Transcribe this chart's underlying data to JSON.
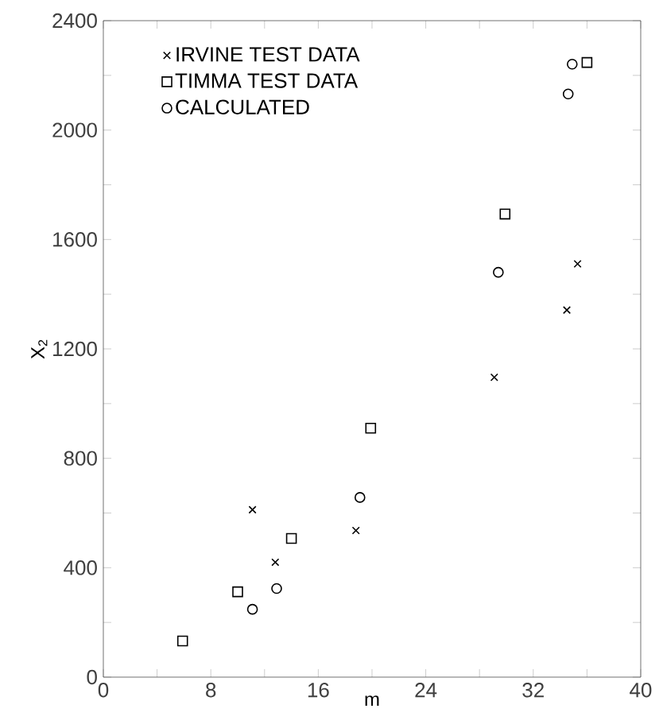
{
  "chart_data": {
    "type": "scatter",
    "xlabel": "m",
    "ylabel": "X$_{2}$",
    "xlim": [
      0,
      40
    ],
    "ylim": [
      0,
      2400
    ],
    "xticks": [
      0,
      {
        "value": 4,
        "label": null
      },
      8,
      {
        "value": 12,
        "label": null
      },
      16,
      {
        "value": 20,
        "label": null
      },
      24,
      {
        "value": 28,
        "label": null
      },
      32,
      {
        "value": 36,
        "label": null
      },
      40
    ],
    "yticks": [
      0,
      {
        "value": 200,
        "label": null
      },
      400,
      {
        "value": 600,
        "label": null
      },
      800,
      {
        "value": 1000,
        "label": null
      },
      1200,
      {
        "value": 1400,
        "label": null
      },
      1600,
      {
        "value": 1800,
        "label": null
      },
      2000,
      {
        "value": 2200,
        "label": null
      },
      2400
    ],
    "legend": "top left",
    "grid": false,
    "series": [
      {
        "name": "IRVINE TEST DATA",
        "color": "#000000",
        "marker": "cross",
        "x": [
          11.1,
          12.8,
          18.8,
          29.1,
          34.5,
          35.3
        ],
        "values": [
          612,
          420,
          536,
          1096,
          1342,
          1511
        ]
      },
      {
        "name": "TIMMA TEST DATA",
        "color": "#000000",
        "marker": "square",
        "x": [
          5.9,
          10.0,
          14.0,
          19.9,
          29.9,
          36.0
        ],
        "values": [
          132,
          312,
          507,
          910,
          1693,
          2247
        ]
      },
      {
        "name": "CALCULATED",
        "color": "#000000",
        "marker": "circle",
        "x": [
          11.1,
          12.9,
          19.1,
          29.4,
          34.6,
          34.9
        ],
        "values": [
          248,
          324,
          657,
          1480,
          2132,
          2241
        ]
      }
    ]
  }
}
